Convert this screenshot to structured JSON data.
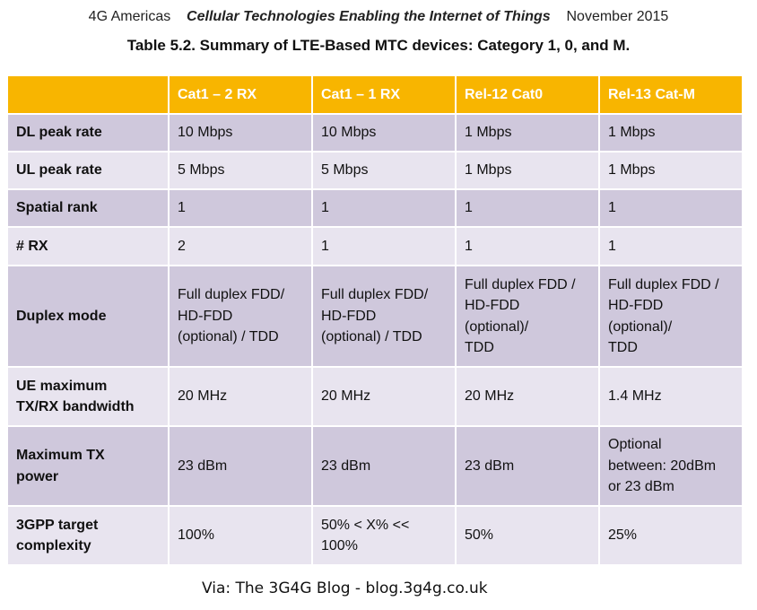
{
  "header": {
    "org": "4G Americas",
    "title": "Cellular Technologies Enabling the Internet of Things",
    "date": "November 2015"
  },
  "table": {
    "caption": "Table 5.2. Summary of LTE-Based MTC devices: Category 1, 0, and M.",
    "columns": [
      "Cat1 – 2 RX",
      "Cat1 – 1 RX",
      "Rel-12 Cat0",
      "Rel-13 Cat-M"
    ],
    "rows": [
      {
        "label": [
          "DL peak rate"
        ],
        "cells": [
          [
            "10 Mbps"
          ],
          [
            "10 Mbps"
          ],
          [
            "1 Mbps"
          ],
          [
            "1 Mbps"
          ]
        ]
      },
      {
        "label": [
          "UL peak rate"
        ],
        "cells": [
          [
            "5 Mbps"
          ],
          [
            "5 Mbps"
          ],
          [
            "1 Mbps"
          ],
          [
            "1 Mbps"
          ]
        ]
      },
      {
        "label": [
          "Spatial rank"
        ],
        "cells": [
          [
            "1"
          ],
          [
            "1"
          ],
          [
            "1"
          ],
          [
            "1"
          ]
        ]
      },
      {
        "label": [
          "# RX"
        ],
        "cells": [
          [
            "2"
          ],
          [
            "1"
          ],
          [
            "1"
          ],
          [
            "1"
          ]
        ]
      },
      {
        "label": [
          "Duplex mode"
        ],
        "cells": [
          [
            "Full duplex FDD/",
            "HD-FDD",
            "(optional) / TDD"
          ],
          [
            "Full duplex FDD/",
            "HD-FDD",
            "(optional) / TDD"
          ],
          [
            "Full duplex FDD /",
            "HD-FDD",
            "(optional)/",
            "TDD"
          ],
          [
            "Full duplex FDD /",
            "HD-FDD",
            "(optional)/",
            "TDD"
          ]
        ]
      },
      {
        "label": [
          "UE maximum",
          "TX/RX bandwidth"
        ],
        "cells": [
          [
            "20 MHz"
          ],
          [
            "20 MHz"
          ],
          [
            "20 MHz"
          ],
          [
            "1.4 MHz"
          ]
        ]
      },
      {
        "label": [
          "Maximum TX",
          "power"
        ],
        "cells": [
          [
            "23 dBm"
          ],
          [
            "23 dBm"
          ],
          [
            "23 dBm"
          ],
          [
            "Optional",
            "between: 20dBm",
            "or 23 dBm"
          ]
        ]
      },
      {
        "label": [
          "3GPP target",
          "complexity"
        ],
        "cells": [
          [
            "100%"
          ],
          [
            "50% <  X% <<",
            "100%"
          ],
          [
            "50%"
          ],
          [
            "25%"
          ]
        ]
      }
    ]
  },
  "footer": "Via: The 3G4G Blog - blog.3g4g.co.uk"
}
